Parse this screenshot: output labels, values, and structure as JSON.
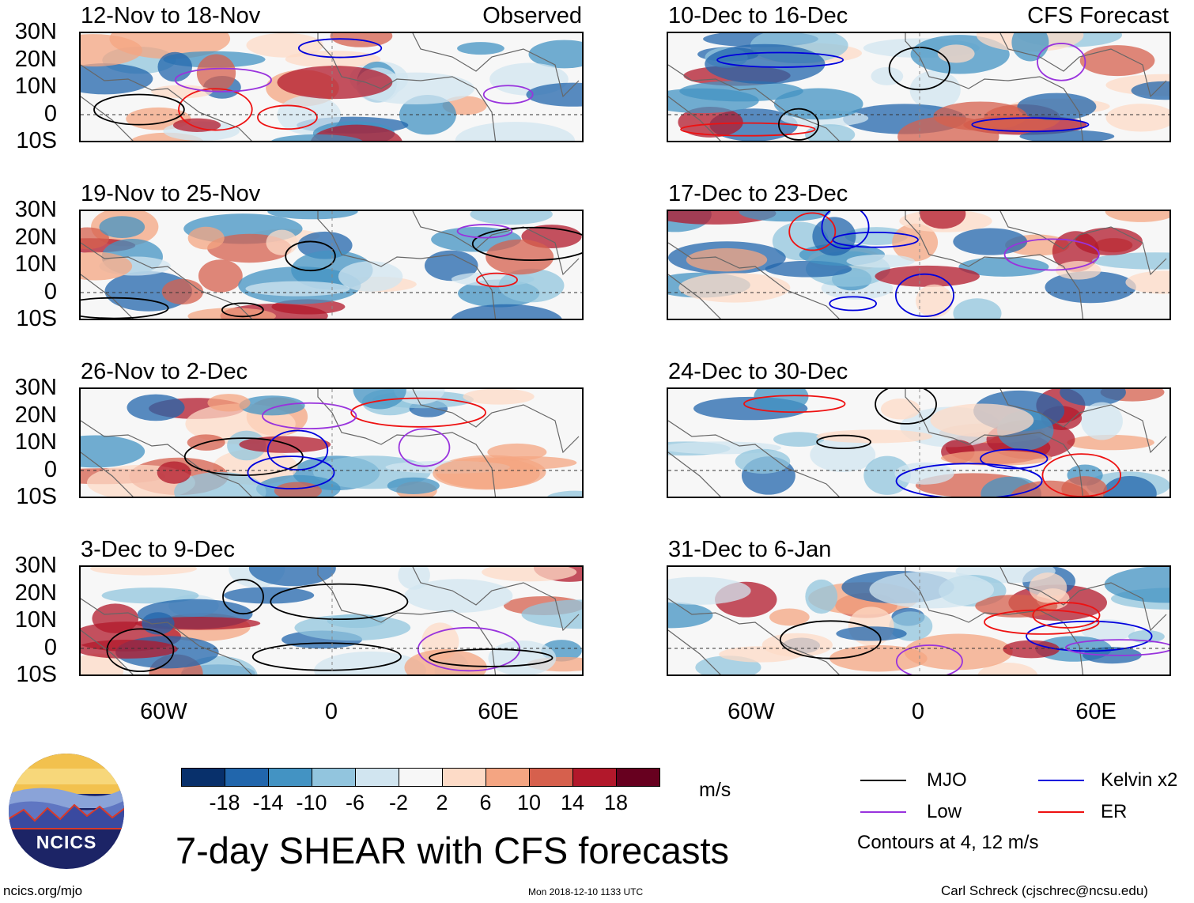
{
  "panels_left": [
    {
      "title": "12-Nov to 18-Nov",
      "label": "Observed"
    },
    {
      "title": "19-Nov to 25-Nov",
      "label": ""
    },
    {
      "title": "26-Nov to 2-Dec",
      "label": ""
    },
    {
      "title": "3-Dec to 9-Dec",
      "label": ""
    }
  ],
  "panels_right": [
    {
      "title": "10-Dec to 16-Dec",
      "label": "CFS Forecast"
    },
    {
      "title": "17-Dec to 23-Dec",
      "label": ""
    },
    {
      "title": "24-Dec to 30-Dec",
      "label": ""
    },
    {
      "title": "31-Dec to 6-Jan",
      "label": ""
    }
  ],
  "lat_labels": [
    "30N",
    "20N",
    "10N",
    "0",
    "10S"
  ],
  "lon_labels": [
    "60W",
    "0",
    "60E"
  ],
  "colorbar": {
    "labels": [
      "-18",
      "-14",
      "-10",
      "-6",
      "-2",
      "2",
      "6",
      "10",
      "14",
      "18"
    ],
    "colors": [
      "#08306b",
      "#2166ac",
      "#4393c3",
      "#92c5de",
      "#d1e5f0",
      "#f7f7f7",
      "#fddbc7",
      "#f4a582",
      "#d6604d",
      "#b2182b",
      "#67001f"
    ],
    "units": "m/s"
  },
  "legend": {
    "mjo": "MJO",
    "kelvin": "Kelvin x2",
    "low": "Low",
    "er": "ER",
    "contours": "Contours at 4, 12 m/s",
    "colors": {
      "mjo": "#000000",
      "kelvin": "#0000dd",
      "low": "#9933dd",
      "er": "#ee1111"
    }
  },
  "main_title": "7-day SHEAR with CFS forecasts",
  "logo_text": "NCICS",
  "footer": {
    "left": "ncics.org/mjo",
    "center": "Mon 2018-12-10 1133 UTC",
    "right": "Carl Schreck (cjschrec@ncsu.edu)"
  }
}
